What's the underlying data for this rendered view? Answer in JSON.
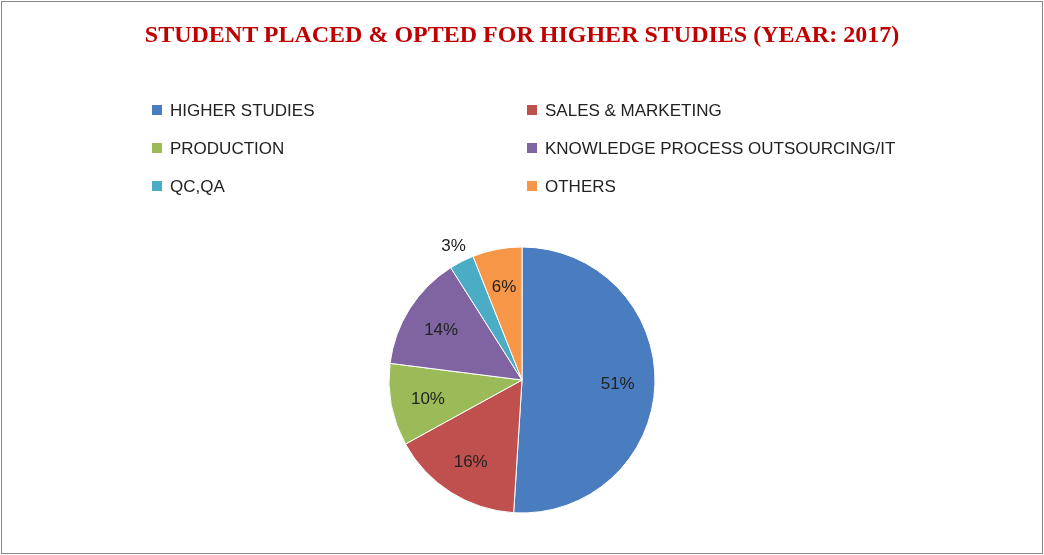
{
  "chart_data": {
    "type": "pie",
    "title": "STUDENT PLACED & OPTED FOR HIGHER STUDIES (YEAR: 2017)",
    "categories": [
      "HIGHER STUDIES",
      "SALES & MARKETING",
      "PRODUCTION",
      "KNOWLEDGE PROCESS OUTSOURCING/IT",
      "QC,QA",
      "OTHERS"
    ],
    "values": [
      51,
      16,
      10,
      14,
      3,
      6
    ],
    "value_labels": [
      "51%",
      "16%",
      "10%",
      "14%",
      "3%",
      "6%"
    ],
    "colors": [
      "#4a7cc0",
      "#c0504d",
      "#9bbb59",
      "#8064a2",
      "#4bacc6",
      "#f79646"
    ],
    "legend": "top"
  }
}
